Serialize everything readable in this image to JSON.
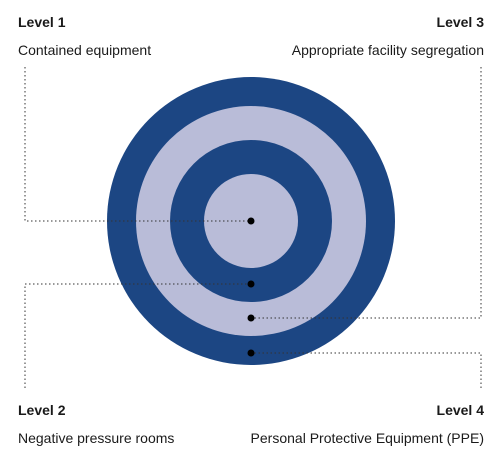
{
  "colors": {
    "dark_ring": "#1c4683",
    "light_ring": "#b9bcd8",
    "dot": "#000000",
    "leader_line": "#333333"
  },
  "levels": [
    {
      "title": "Level 1",
      "description": "Contained equipment"
    },
    {
      "title": "Level 2",
      "description": "Negative pressure rooms"
    },
    {
      "title": "Level 3",
      "description": "Appropriate facility segregation"
    },
    {
      "title": "Level 4",
      "description": "Personal Protective Equipment (PPE)"
    }
  ]
}
